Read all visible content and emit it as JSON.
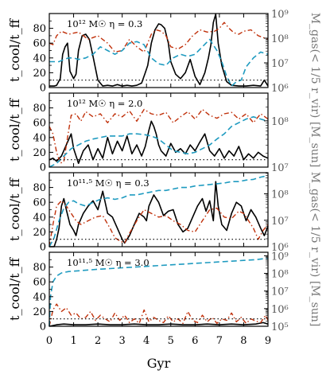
{
  "chart_data": {
    "type": "line",
    "xlabel": "Gyr",
    "ylabel_left": "t_cool/t_ff",
    "ylabel_right_top": "M_gas(< 1/5 r_vir) [M_sun]",
    "ylabel_right_bottom": "M_gas(< 1/5 r_vir) [M_sun]",
    "xlim": [
      0,
      9
    ],
    "x_ticks": [
      "0",
      "1",
      "2",
      "3",
      "4",
      "5",
      "6",
      "7",
      "8",
      "9"
    ],
    "left_ylim": [
      0,
      100
    ],
    "left_y_ticks": [
      "0",
      "20",
      "40",
      "60",
      "80"
    ],
    "threshold_value": 10,
    "colors": {
      "ratio": "#000000",
      "ratio_alt": "#c0300a",
      "mass": "#1f9bc0",
      "threshold": "#000000"
    },
    "panels": [
      {
        "annotation": "10¹² M☉ η = 0.3",
        "right_log_range": [
          6,
          9
        ],
        "right_ticks": [
          "10⁶",
          "10⁷",
          "10⁸",
          "10⁹"
        ],
        "series": [
          {
            "style": "solid",
            "x": [
              0,
              0.2,
              0.3,
              0.45,
              0.55,
              0.65,
              0.75,
              0.85,
              1.0,
              1.1,
              1.2,
              1.35,
              1.5,
              1.65,
              1.8,
              2.0,
              2.2,
              2.4,
              2.6,
              2.8,
              3.0,
              3.2,
              3.4,
              3.6,
              3.8,
              3.95,
              4.05,
              4.2,
              4.35,
              4.5,
              4.6,
              4.75,
              4.9,
              5.0,
              5.2,
              5.4,
              5.6,
              5.8,
              6.0,
              6.2,
              6.4,
              6.55,
              6.65,
              6.75,
              6.85,
              6.95,
              7.1,
              7.3,
              7.5,
              7.8,
              8.1,
              8.4,
              8.7,
              8.85,
              9.0
            ],
            "y": [
              2,
              2,
              3,
              12,
              45,
              55,
              60,
              22,
              12,
              18,
              50,
              70,
              72,
              65,
              42,
              10,
              2,
              3,
              2,
              4,
              2,
              3,
              2,
              3,
              6,
              20,
              30,
              60,
              78,
              86,
              85,
              80,
              60,
              35,
              18,
              12,
              20,
              38,
              15,
              4,
              20,
              40,
              58,
              88,
              99,
              60,
              30,
              8,
              3,
              2,
              2,
              3,
              2,
              10,
              2
            ]
          },
          {
            "style": "dashdot",
            "x": [
              0,
              0.15,
              0.3,
              0.5,
              0.8,
              1.2,
              1.6,
              2.0,
              2.4,
              2.7,
              3.0,
              3.3,
              3.6,
              3.9,
              4.2,
              4.4,
              4.6,
              4.8,
              5.0,
              5.3,
              5.6,
              5.9,
              6.2,
              6.5,
              6.8,
              7.0,
              7.2,
              7.4,
              7.6,
              7.8,
              8.0,
              8.3,
              8.6,
              9.0
            ],
            "y": [
              60,
              58,
              70,
              76,
              72,
              75,
              65,
              70,
              60,
              48,
              50,
              65,
              55,
              48,
              72,
              78,
              76,
              70,
              55,
              52,
              58,
              70,
              78,
              75,
              76,
              80,
              88,
              80,
              74,
              72,
              76,
              78,
              70,
              65
            ]
          },
          {
            "style": "dashed",
            "x": [
              0,
              0.2,
              0.4,
              0.6,
              0.8,
              1.0,
              1.2,
              1.5,
              1.8,
              2.1,
              2.4,
              2.7,
              3.0,
              3.3,
              3.6,
              3.9,
              4.2,
              4.5,
              4.8,
              5.1,
              5.4,
              5.7,
              6.0,
              6.3,
              6.6,
              6.9,
              7.1,
              7.3,
              7.5,
              7.7,
              7.9,
              8.1,
              8.4,
              8.7,
              9.0
            ],
            "y": [
              35,
              35,
              35,
              38,
              40,
              40,
              38,
              40,
              45,
              55,
              50,
              45,
              50,
              60,
              62,
              58,
              40,
              32,
              30,
              40,
              45,
              42,
              45,
              55,
              65,
              50,
              35,
              15,
              2,
              8,
              10,
              28,
              40,
              48,
              45
            ]
          }
        ]
      },
      {
        "annotation": "10¹² M☉ η = 2.0",
        "right_log_range": [
          7,
          8.6
        ],
        "right_ticks": [
          "10⁷",
          "10⁸"
        ],
        "series": [
          {
            "style": "solid",
            "x": [
              0,
              0.15,
              0.3,
              0.5,
              0.7,
              0.9,
              1.0,
              1.2,
              1.4,
              1.6,
              1.8,
              2.0,
              2.2,
              2.4,
              2.6,
              2.8,
              3.0,
              3.2,
              3.4,
              3.6,
              3.8,
              3.95,
              4.1,
              4.2,
              4.3,
              4.4,
              4.5,
              4.6,
              4.8,
              5.0,
              5.2,
              5.4,
              5.6,
              5.8,
              6.0,
              6.2,
              6.4,
              6.6,
              6.8,
              7.0,
              7.2,
              7.4,
              7.6,
              7.8,
              8.0,
              8.2,
              8.4,
              8.6,
              8.8,
              9.0
            ],
            "y": [
              10,
              12,
              8,
              15,
              30,
              45,
              25,
              5,
              22,
              30,
              10,
              25,
              12,
              40,
              18,
              35,
              22,
              42,
              18,
              30,
              15,
              28,
              50,
              62,
              55,
              45,
              30,
              22,
              15,
              32,
              20,
              25,
              18,
              30,
              22,
              34,
              45,
              22,
              15,
              25,
              12,
              22,
              15,
              28,
              10,
              18,
              12,
              20,
              15,
              12
            ]
          },
          {
            "style": "dashdot",
            "x": [
              0,
              0.15,
              0.3,
              0.45,
              0.6,
              0.75,
              0.9,
              1.1,
              1.3,
              1.5,
              1.8,
              2.1,
              2.4,
              2.7,
              3.0,
              3.3,
              3.6,
              3.9,
              4.2,
              4.5,
              4.8,
              5.1,
              5.4,
              5.7,
              6.0,
              6.3,
              6.6,
              6.9,
              7.2,
              7.5,
              7.8,
              8.1,
              8.4,
              8.7,
              9.0
            ],
            "y": [
              55,
              45,
              20,
              5,
              8,
              40,
              70,
              72,
              62,
              75,
              68,
              72,
              60,
              72,
              68,
              76,
              62,
              78,
              72,
              70,
              74,
              60,
              68,
              75,
              65,
              78,
              70,
              66,
              72,
              74,
              65,
              72,
              60,
              72,
              65
            ]
          },
          {
            "style": "dashed",
            "x": [
              0,
              0.3,
              0.6,
              0.9,
              1.2,
              1.5,
              1.8,
              2.1,
              2.4,
              2.7,
              3.0,
              3.3,
              3.6,
              3.9,
              4.2,
              4.5,
              4.8,
              5.1,
              5.4,
              5.7,
              6.0,
              6.3,
              6.6,
              6.9,
              7.2,
              7.5,
              7.8,
              8.1,
              8.4,
              8.7,
              9.0
            ],
            "y": [
              0,
              5,
              15,
              25,
              30,
              35,
              38,
              40,
              42,
              42,
              42,
              45,
              45,
              44,
              42,
              38,
              30,
              22,
              20,
              18,
              20,
              25,
              30,
              38,
              45,
              55,
              60,
              65,
              68,
              65,
              62
            ]
          }
        ]
      },
      {
        "annotation": "10¹¹·⁵ M☉ η = 0.3",
        "right_log_range": [
          6,
          8.8
        ],
        "right_ticks": [
          "10⁶",
          "10⁷",
          "10⁸"
        ],
        "series": [
          {
            "style": "solid",
            "x": [
              0,
              0.2,
              0.3,
              0.4,
              0.5,
              0.6,
              0.7,
              0.85,
              1.0,
              1.1,
              1.2,
              1.4,
              1.6,
              1.8,
              2.0,
              2.2,
              2.4,
              2.6,
              2.8,
              3.0,
              3.1,
              3.3,
              3.5,
              3.7,
              3.9,
              4.0,
              4.1,
              4.3,
              4.5,
              4.7,
              4.9,
              5.1,
              5.3,
              5.5,
              5.7,
              5.9,
              6.1,
              6.3,
              6.45,
              6.6,
              6.75,
              6.85,
              6.95,
              7.1,
              7.3,
              7.5,
              7.7,
              7.9,
              8.1,
              8.3,
              8.5,
              8.7,
              8.85,
              9.0
            ],
            "y": [
              0,
              0,
              10,
              25,
              55,
              65,
              50,
              30,
              22,
              15,
              30,
              45,
              55,
              62,
              50,
              75,
              45,
              40,
              25,
              10,
              5,
              15,
              30,
              45,
              40,
              35,
              55,
              70,
              60,
              42,
              48,
              50,
              30,
              20,
              25,
              40,
              55,
              65,
              48,
              62,
              35,
              88,
              55,
              30,
              22,
              45,
              60,
              55,
              35,
              50,
              40,
              25,
              15,
              28
            ]
          },
          {
            "style": "dashdot",
            "x": [
              0,
              0.15,
              0.3,
              0.5,
              0.7,
              0.9,
              1.1,
              1.3,
              1.6,
              1.9,
              2.2,
              2.5,
              2.7,
              2.9,
              3.1,
              3.3,
              3.6,
              3.9,
              4.2,
              4.5,
              4.8,
              5.1,
              5.4,
              5.7,
              6.0,
              6.3,
              6.6,
              6.9,
              7.2,
              7.5,
              7.8,
              8.0,
              8.2,
              8.4,
              8.6,
              8.8,
              9.0
            ],
            "y": [
              0,
              30,
              55,
              62,
              55,
              45,
              35,
              30,
              35,
              40,
              42,
              25,
              12,
              8,
              5,
              18,
              35,
              50,
              45,
              40,
              42,
              35,
              30,
              22,
              20,
              35,
              50,
              52,
              40,
              38,
              48,
              45,
              35,
              25,
              10,
              22,
              30
            ]
          },
          {
            "style": "dashed",
            "x": [
              0,
              0.2,
              0.4,
              0.6,
              0.8,
              1.0,
              1.2,
              1.5,
              1.8,
              2.1,
              2.4,
              2.7,
              3.0,
              3.3,
              3.6,
              3.9,
              4.2,
              4.5,
              4.8,
              5.1,
              5.4,
              5.7,
              6.0,
              6.3,
              6.6,
              6.9,
              7.2,
              7.5,
              7.8,
              8.1,
              8.4,
              8.7,
              9.0
            ],
            "y": [
              0,
              12,
              35,
              52,
              60,
              62,
              58,
              55,
              60,
              64,
              66,
              64,
              66,
              70,
              70,
              72,
              74,
              76,
              76,
              78,
              80,
              80,
              82,
              83,
              84,
              85,
              86,
              88,
              88,
              90,
              91,
              94,
              96
            ]
          }
        ]
      },
      {
        "annotation": "10¹¹·⁵ M☉ η = 3.0",
        "right_log_range": [
          5,
          9.2
        ],
        "right_ticks": [
          "10⁵",
          "10⁶",
          "10⁷",
          "10⁸",
          "10⁹"
        ],
        "series": [
          {
            "style": "solid",
            "x": [
              0,
              0.3,
              0.6,
              1.0,
              1.5,
              2.0,
              2.5,
              3.0,
              3.5,
              4.0,
              4.5,
              5.0,
              5.5,
              6.0,
              6.5,
              7.0,
              7.5,
              8.0,
              8.5,
              8.8,
              9.0
            ],
            "y": [
              0,
              2,
              3,
              2,
              2,
              3,
              2,
              2,
              3,
              2,
              2,
              3,
              2,
              2,
              3,
              2,
              3,
              2,
              3,
              5,
              3
            ]
          },
          {
            "style": "dashdot",
            "x": [
              0,
              0.15,
              0.3,
              0.5,
              0.7,
              0.9,
              1.1,
              1.3,
              1.5,
              1.7,
              1.9,
              2.1,
              2.3,
              2.5,
              2.7,
              2.9,
              3.1,
              3.3,
              3.5,
              3.7,
              3.9,
              4.1,
              4.3,
              4.5,
              4.7,
              4.9,
              5.1,
              5.3,
              5.5,
              5.7,
              5.9,
              6.1,
              6.3,
              6.5,
              6.7,
              6.9,
              7.1,
              7.3,
              7.5,
              7.7,
              7.9,
              8.1,
              8.3,
              8.5,
              8.7,
              8.9,
              9.0
            ],
            "y": [
              0,
              22,
              30,
              20,
              25,
              15,
              18,
              10,
              12,
              20,
              8,
              15,
              10,
              6,
              18,
              8,
              15,
              5,
              10,
              4,
              22,
              6,
              12,
              8,
              5,
              14,
              6,
              10,
              4,
              20,
              8,
              5,
              15,
              6,
              12,
              4,
              10,
              8,
              18,
              6,
              12,
              4,
              10,
              7,
              5,
              15,
              8
            ]
          },
          {
            "style": "dashed",
            "x": [
              0,
              0.05,
              0.15,
              0.3,
              0.5,
              0.8,
              1.2,
              1.6,
              2.0,
              2.5,
              3.0,
              3.5,
              4.0,
              4.5,
              5.0,
              5.5,
              6.0,
              6.5,
              7.0,
              7.5,
              8.0,
              8.5,
              9.0
            ],
            "y": [
              0,
              40,
              60,
              68,
              72,
              74,
              75,
              76,
              77,
              78,
              79,
              80,
              81,
              82,
              83,
              84,
              85,
              86,
              87,
              88,
              89,
              90,
              92
            ]
          }
        ]
      }
    ]
  }
}
